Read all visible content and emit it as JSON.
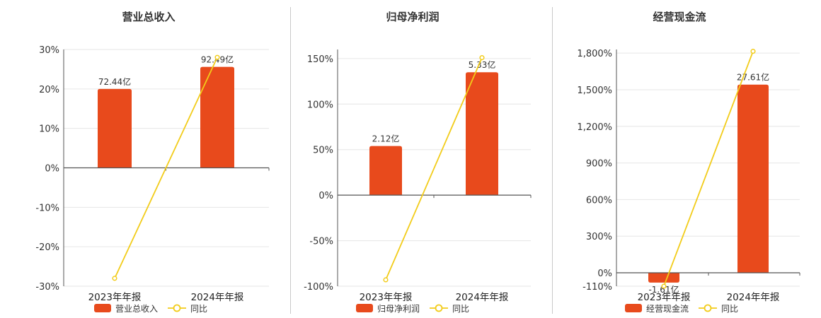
{
  "colors": {
    "bar": "#E84A1C",
    "line": "#F2CC1A",
    "grid": "#e6e6e6",
    "axis": "#555555"
  },
  "chart_data": [
    {
      "type": "bar",
      "title": "营业总收入",
      "categories": [
        "2023年年报",
        "2024年年报"
      ],
      "series": [
        {
          "name": "营业总收入",
          "type": "bar",
          "values": [
            20.0,
            25.6
          ],
          "labels": [
            "72.44亿",
            "92.49亿"
          ]
        },
        {
          "name": "同比",
          "type": "line",
          "values": [
            -28.0,
            28.0
          ]
        }
      ],
      "yticks": [
        "30%",
        "20%",
        "10%",
        "0%",
        "-10%",
        "-20%",
        "-30%"
      ],
      "ylim": [
        -30,
        30
      ],
      "grid": true,
      "legend": "bottom"
    },
    {
      "type": "bar",
      "title": "归母净利润",
      "categories": [
        "2023年年报",
        "2024年年报"
      ],
      "series": [
        {
          "name": "归母净利润",
          "type": "bar",
          "values": [
            54.0,
            135.0
          ],
          "labels": [
            "2.12亿",
            "5.33亿"
          ]
        },
        {
          "name": "同比",
          "type": "line",
          "values": [
            -93.0,
            151.0
          ]
        }
      ],
      "yticks": [
        "150%",
        "100%",
        "50%",
        "0%",
        "-50%",
        "-100%"
      ],
      "ylim": [
        -100,
        160
      ],
      "grid": true,
      "legend": "bottom"
    },
    {
      "type": "bar",
      "title": "经营现金流",
      "categories": [
        "2023年年报",
        "2024年年报"
      ],
      "series": [
        {
          "name": "经营现金流",
          "type": "bar",
          "values": [
            -80.0,
            1542.0
          ],
          "labels": [
            "-1.61亿",
            "27.61亿"
          ]
        },
        {
          "name": "同比",
          "type": "line",
          "values": [
            -110.0,
            1815.0
          ]
        }
      ],
      "yticks": [
        "1,800%",
        "1,500%",
        "1,200%",
        "900%",
        "600%",
        "300%",
        "0%",
        "-110%"
      ],
      "ylim": [
        -110,
        1830
      ],
      "grid": true,
      "legend": "bottom"
    }
  ]
}
